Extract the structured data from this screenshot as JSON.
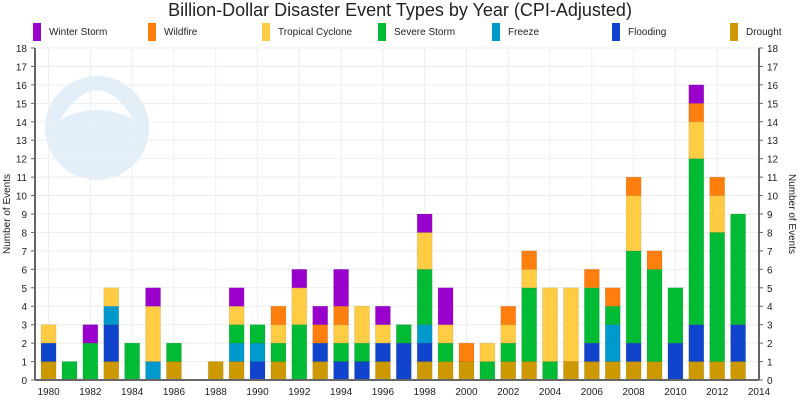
{
  "chart_data": {
    "type": "bar",
    "stacked": true,
    "title": "Billion-Dollar Disaster Event Types by Year (CPI-Adjusted)",
    "ylabel": "Number of Events",
    "ylabel_right": "Number of Events",
    "xlabel": "",
    "ylim": [
      0,
      18
    ],
    "xlim": [
      1979.5,
      2014
    ],
    "x_ticks": [
      1980,
      1982,
      1984,
      1986,
      1988,
      1990,
      1992,
      1994,
      1996,
      1998,
      2000,
      2002,
      2004,
      2006,
      2008,
      2010,
      2012,
      2014
    ],
    "legend_position": "top",
    "categories": [
      1980,
      1981,
      1982,
      1983,
      1984,
      1985,
      1986,
      1987,
      1988,
      1989,
      1990,
      1991,
      1992,
      1993,
      1994,
      1995,
      1996,
      1997,
      1998,
      1999,
      2000,
      2001,
      2002,
      2003,
      2004,
      2005,
      2006,
      2007,
      2008,
      2009,
      2010,
      2011,
      2012,
      2013
    ],
    "series": [
      {
        "name": "Drought",
        "color": "#cc9900",
        "values": [
          1,
          0,
          0,
          1,
          0,
          0,
          1,
          0,
          1,
          1,
          0,
          1,
          0,
          1,
          0,
          0,
          1,
          0,
          1,
          1,
          1,
          0,
          1,
          1,
          0,
          1,
          1,
          1,
          1,
          1,
          0,
          1,
          1,
          1
        ]
      },
      {
        "name": "Flooding",
        "color": "#1144cc",
        "values": [
          1,
          0,
          0,
          2,
          0,
          0,
          0,
          0,
          0,
          0,
          1,
          0,
          0,
          1,
          1,
          1,
          1,
          2,
          1,
          0,
          0,
          0,
          0,
          0,
          0,
          0,
          1,
          0,
          1,
          0,
          2,
          2,
          0,
          2
        ]
      },
      {
        "name": "Freeze",
        "color": "#0099cc",
        "values": [
          0,
          0,
          0,
          1,
          0,
          1,
          0,
          0,
          0,
          1,
          1,
          0,
          0,
          0,
          0,
          0,
          0,
          0,
          1,
          0,
          0,
          0,
          0,
          0,
          0,
          0,
          0,
          2,
          0,
          0,
          0,
          0,
          0,
          0
        ]
      },
      {
        "name": "Severe Storm",
        "color": "#00bb33",
        "values": [
          0,
          1,
          2,
          0,
          2,
          0,
          1,
          0,
          0,
          1,
          1,
          1,
          3,
          0,
          1,
          1,
          0,
          1,
          3,
          1,
          0,
          1,
          1,
          4,
          1,
          0,
          3,
          1,
          5,
          5,
          3,
          9,
          7,
          6
        ]
      },
      {
        "name": "Tropical Cyclone",
        "color": "#ffcc44",
        "values": [
          1,
          0,
          0,
          1,
          0,
          3,
          0,
          0,
          0,
          1,
          0,
          1,
          2,
          0,
          1,
          2,
          1,
          0,
          2,
          1,
          0,
          1,
          1,
          1,
          4,
          4,
          0,
          0,
          3,
          0,
          0,
          2,
          2,
          0
        ]
      },
      {
        "name": "Wildfire",
        "color": "#ff7f0e",
        "values": [
          0,
          0,
          0,
          0,
          0,
          0,
          0,
          0,
          0,
          0,
          0,
          1,
          0,
          1,
          1,
          0,
          0,
          0,
          0,
          0,
          1,
          0,
          1,
          1,
          0,
          0,
          1,
          1,
          1,
          1,
          0,
          1,
          1,
          0
        ]
      },
      {
        "name": "Winter Storm",
        "color": "#9900cc",
        "values": [
          0,
          0,
          1,
          0,
          0,
          1,
          0,
          0,
          0,
          1,
          0,
          0,
          1,
          1,
          2,
          0,
          1,
          0,
          1,
          2,
          0,
          0,
          0,
          0,
          0,
          0,
          0,
          0,
          0,
          0,
          0,
          1,
          0,
          0
        ]
      }
    ],
    "legend_order": [
      "Winter Storm",
      "Wildfire",
      "Tropical Cyclone",
      "Severe Storm",
      "Freeze",
      "Flooding",
      "Drought"
    ],
    "grid": true
  }
}
